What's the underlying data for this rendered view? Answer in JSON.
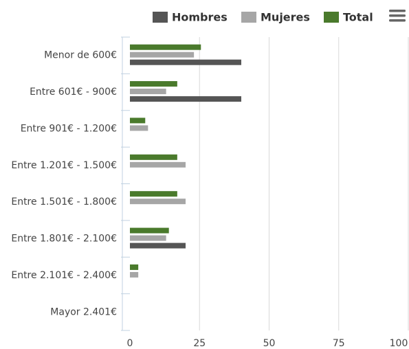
{
  "chart_data": {
    "type": "bar",
    "orientation": "horizontal",
    "categories": [
      "Menor de 600€",
      "Entre 601€ - 900€",
      "Entre 901€ - 1.200€",
      "Entre 1.201€ - 1.500€",
      "Entre 1.501€ - 1.800€",
      "Entre 1.801€ - 2.100€",
      "Entre 2.101€ - 2.400€",
      "Mayor 2.401€"
    ],
    "series": [
      {
        "name": "Hombres",
        "color": "#555555",
        "values": [
          40,
          40,
          0,
          0,
          0,
          20,
          0,
          0
        ]
      },
      {
        "name": "Mujeres",
        "color": "#a6a6a6",
        "values": [
          23,
          13,
          6.5,
          20,
          20,
          13,
          3,
          0
        ]
      },
      {
        "name": "Total",
        "color": "#4a7a2c",
        "values": [
          25.5,
          17,
          5.5,
          17,
          17,
          14,
          3,
          0
        ]
      }
    ],
    "xlim": [
      0,
      100
    ],
    "xticks": [
      0,
      25,
      50,
      75,
      100
    ],
    "grid": true,
    "legend": "top-right"
  }
}
